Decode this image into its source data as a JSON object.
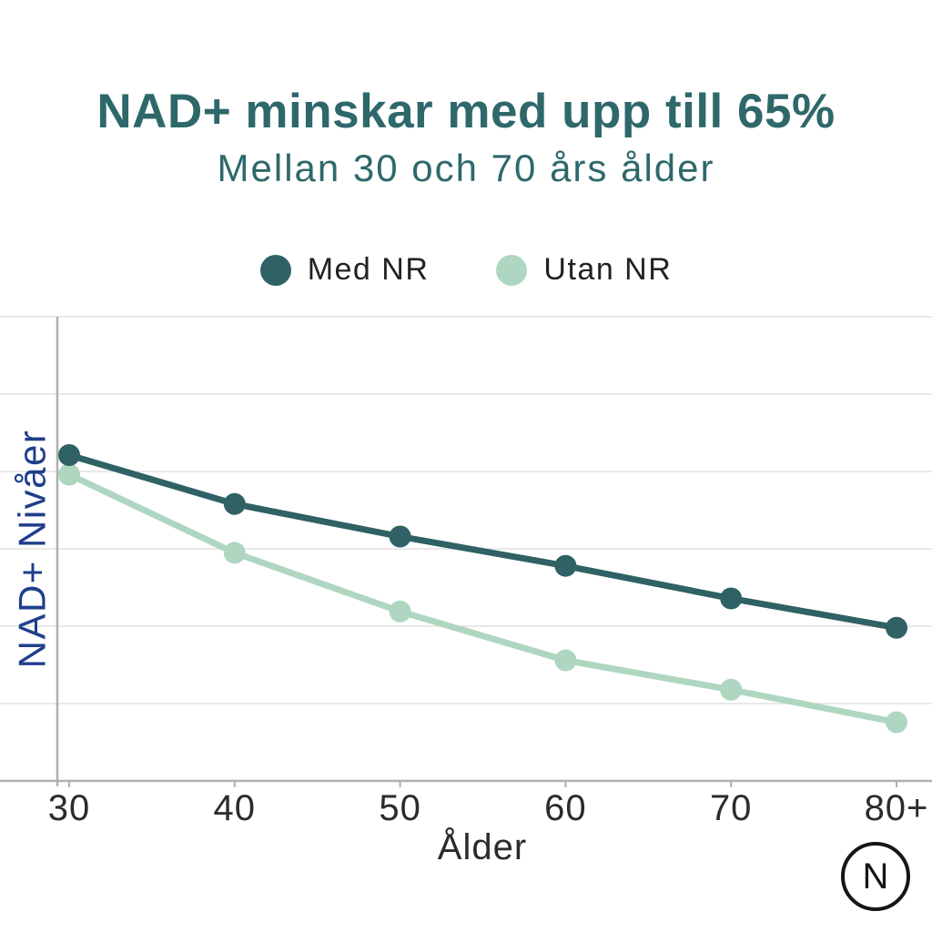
{
  "header": {
    "title": "NAD+ minskar med upp till 65%",
    "subtitle": "Mellan 30 och 70 års ålder",
    "title_color": "#2e686a"
  },
  "chart_data": {
    "type": "line",
    "categories": [
      "30",
      "40",
      "50",
      "60",
      "70",
      "80+"
    ],
    "series": [
      {
        "name": "Med NR",
        "color": "#2f6165",
        "values": [
          100,
          85,
          75,
          66,
          56,
          47
        ]
      },
      {
        "name": "Utan NR",
        "color": "#aed6c0",
        "values": [
          94,
          70,
          52,
          37,
          28,
          18
        ]
      }
    ],
    "xlabel": "Ålder",
    "ylabel": "NAD+ Nivåer",
    "ylim": [
      0,
      142
    ],
    "y_tick_labels": "none",
    "grid": "horizontal-only",
    "legend_position": "top-center",
    "note": "Y axis has no numeric labels; values estimated from point positions, normalized so Med NR at age 30 = 100"
  },
  "colors": {
    "ylabel_text": "#1f3e8c",
    "axis_line": "#b0b0b0",
    "gridline": "#e2e2e2",
    "tick_text": "#2b2b2b",
    "legend_text": "#222222",
    "logo": "#161616",
    "background": "#ffffff"
  },
  "logo": {
    "letter": "N"
  }
}
